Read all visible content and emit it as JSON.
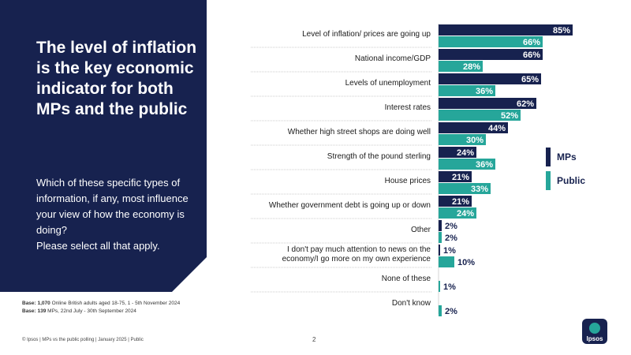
{
  "headline": "The level of inflation is the key economic indicator for both MPs and the public",
  "question": "Which of these specific types of information, if any, most influence your view of how the economy is doing?",
  "instruction": "Please select all that apply.",
  "base_public_label": "Base: 1,070",
  "base_public_text": "Online British adults aged 18-75, 1 - 5th November 2024",
  "base_mps_label": "Base: 139",
  "base_mps_text": "MPs, 22nd July - 30th September 2024",
  "footer": "© Ipsos | MPs vs the public polling | January 2025 | Public",
  "page_number": "2",
  "logo_text": "Ipsos",
  "colors": {
    "mps": "#17224f",
    "public": "#26a69a",
    "panel": "#17224f"
  },
  "chart_data": {
    "type": "bar",
    "orientation": "horizontal",
    "categories": [
      "Level of inflation/ prices are going up",
      "National income/GDP",
      "Levels of unemployment",
      "Interest rates",
      "Whether high street shops are doing well",
      "Strength of the pound sterling",
      "House prices",
      "Whether government debt is going up or down",
      "Other",
      "I don't pay much attention to news on the economy/I go more on my own experience",
      "None of these",
      "Don't know"
    ],
    "series": [
      {
        "name": "MPs",
        "values": [
          85,
          66,
          65,
          62,
          44,
          24,
          21,
          21,
          2,
          1,
          null,
          null
        ],
        "labels": [
          "85%",
          "66%",
          "65%",
          "62%",
          "44%",
          "24%",
          "21%",
          "21%",
          "2%",
          "1%",
          "",
          ""
        ]
      },
      {
        "name": "Public",
        "values": [
          66,
          28,
          36,
          52,
          30,
          36,
          33,
          24,
          2,
          10,
          1,
          2
        ],
        "labels": [
          "66%",
          "28%",
          "36%",
          "52%",
          "30%",
          "36%",
          "33%",
          "24%",
          "2%",
          "10%",
          "1%",
          "2%"
        ]
      }
    ],
    "xlim": [
      0,
      100
    ],
    "legend": "right"
  }
}
